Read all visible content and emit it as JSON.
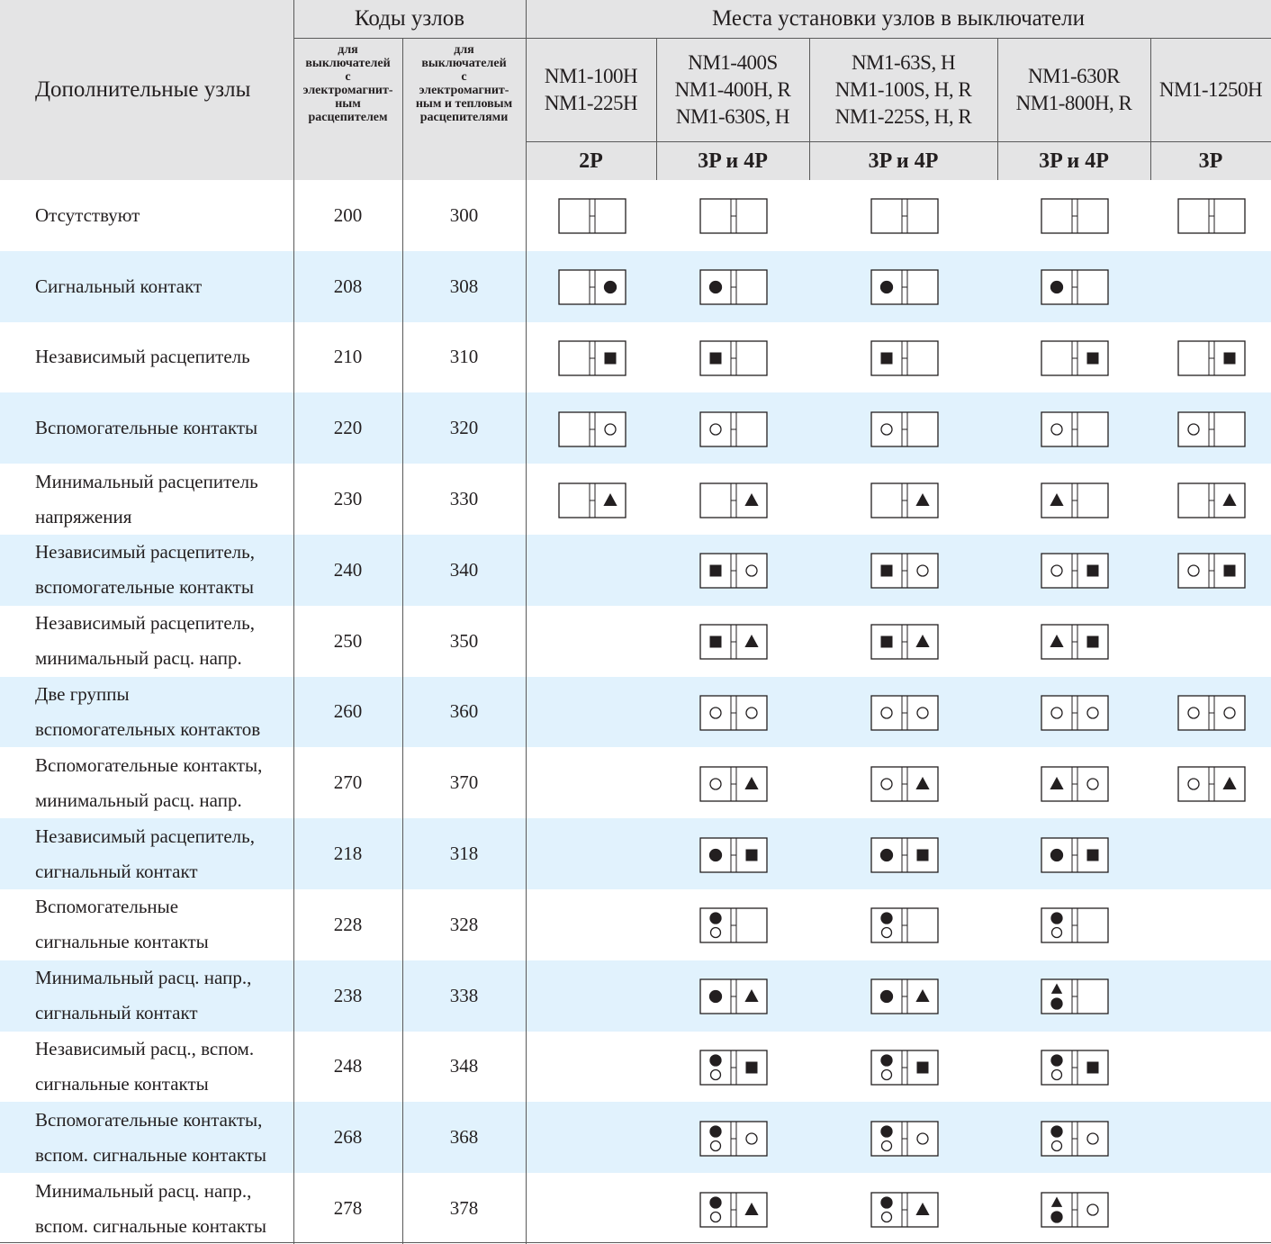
{
  "header": {
    "accessories": "Дополнительные узлы",
    "codes": "Коды узлов",
    "places": "Места установки узлов в выключатели",
    "code_em": "для\nвыключателей\nс\nэлектромагнит-\nным\nрасцепителем",
    "code_th": "для\nвыключателей\nс\nэлектромагнит-\nным и тепловым\nрасцепителями",
    "models": [
      "NM1-100H\nNM1-225H",
      "NM1-400S\nNM1-400H, R\nNM1-630S, H",
      "NM1-63S, H\nNM1-100S, H, R\nNM1-225S, H, R",
      "NM1-630R\nNM1-800H, R",
      "NM1-1250H"
    ],
    "poles": [
      "2P",
      "3P и 4P",
      "3P и 4P",
      "3P и 4P",
      "3P"
    ]
  },
  "symbol_legend": {
    "F": "filled-circle",
    "O": "hollow-circle",
    "S": "filled-square",
    "T": "filled-triangle",
    "FO": "filled-over-hollow-circle",
    "TF": "triangle-over-filled-circle"
  },
  "rows": [
    {
      "label": "Отсутствуют",
      "em": "200",
      "th": "300",
      "slots": [
        [
          "",
          ""
        ],
        [
          "",
          ""
        ],
        [
          "",
          ""
        ],
        [
          "",
          ""
        ],
        [
          "",
          ""
        ]
      ]
    },
    {
      "label": "Сигнальный контакт",
      "em": "208",
      "th": "308",
      "slots": [
        [
          "",
          "F"
        ],
        [
          "F",
          ""
        ],
        [
          "F",
          ""
        ],
        [
          "F",
          ""
        ],
        null
      ]
    },
    {
      "label": "Независимый расцепитель",
      "em": "210",
      "th": "310",
      "slots": [
        [
          "",
          "S"
        ],
        [
          "S",
          ""
        ],
        [
          "S",
          ""
        ],
        [
          "",
          "S"
        ],
        [
          "",
          "S"
        ]
      ]
    },
    {
      "label": "Вспомогательные контакты",
      "em": "220",
      "th": "320",
      "slots": [
        [
          "",
          "O"
        ],
        [
          "O",
          ""
        ],
        [
          "O",
          ""
        ],
        [
          "O",
          ""
        ],
        [
          "O",
          ""
        ]
      ]
    },
    {
      "label": "Минимальный расцепитель\nнапряжения",
      "em": "230",
      "th": "330",
      "slots": [
        [
          "",
          "T"
        ],
        [
          "",
          "T"
        ],
        [
          "",
          "T"
        ],
        [
          "T",
          ""
        ],
        [
          "",
          "T"
        ]
      ]
    },
    {
      "label": "Независимый расцепитель,\nвспомогательные контакты",
      "em": "240",
      "th": "340",
      "slots": [
        null,
        [
          "S",
          "O"
        ],
        [
          "S",
          "O"
        ],
        [
          "O",
          "S"
        ],
        [
          "O",
          "S"
        ]
      ]
    },
    {
      "label": "Независимый расцепитель,\nминимальный расц. напр.",
      "em": "250",
      "th": "350",
      "slots": [
        null,
        [
          "S",
          "T"
        ],
        [
          "S",
          "T"
        ],
        [
          "T",
          "S"
        ],
        null
      ]
    },
    {
      "label": "Две группы\nвспомогательных контактов",
      "em": "260",
      "th": "360",
      "slots": [
        null,
        [
          "O",
          "O"
        ],
        [
          "O",
          "O"
        ],
        [
          "O",
          "O"
        ],
        [
          "O",
          "O"
        ]
      ]
    },
    {
      "label": "Вспомогательные контакты,\nминимальный расц. напр.",
      "em": "270",
      "th": "370",
      "slots": [
        null,
        [
          "O",
          "T"
        ],
        [
          "O",
          "T"
        ],
        [
          "T",
          "O"
        ],
        [
          "O",
          "T"
        ]
      ]
    },
    {
      "label": "Независимый расцепитель,\nсигнальный контакт",
      "em": "218",
      "th": "318",
      "slots": [
        null,
        [
          "F",
          "S"
        ],
        [
          "F",
          "S"
        ],
        [
          "F",
          "S"
        ],
        null
      ]
    },
    {
      "label": "Вспомогательные\nсигнальные контакты",
      "em": "228",
      "th": "328",
      "slots": [
        null,
        [
          "FO",
          ""
        ],
        [
          "FO",
          ""
        ],
        [
          "FO",
          ""
        ],
        null
      ]
    },
    {
      "label": "Минимальный расц. напр.,\nсигнальный контакт",
      "em": "238",
      "th": "338",
      "slots": [
        null,
        [
          "F",
          "T"
        ],
        [
          "F",
          "T"
        ],
        [
          "TF",
          ""
        ],
        null
      ]
    },
    {
      "label": "Независимый расц., вспом.\nсигнальные контакты",
      "em": "248",
      "th": "348",
      "slots": [
        null,
        [
          "FO",
          "S"
        ],
        [
          "FO",
          "S"
        ],
        [
          "FO",
          "S"
        ],
        null
      ]
    },
    {
      "label": "Вспомогательные контакты,\nвспом. сигнальные контакты",
      "em": "268",
      "th": "368",
      "slots": [
        null,
        [
          "FO",
          "O"
        ],
        [
          "FO",
          "O"
        ],
        [
          "FO",
          "O"
        ],
        null
      ]
    },
    {
      "label": "Минимальный расц. напр.,\nвспом.  сигнальные контакты",
      "em": "278",
      "th": "378",
      "slots": [
        null,
        [
          "FO",
          "T"
        ],
        [
          "FO",
          "T"
        ],
        [
          "TF",
          "O"
        ],
        null
      ]
    }
  ]
}
